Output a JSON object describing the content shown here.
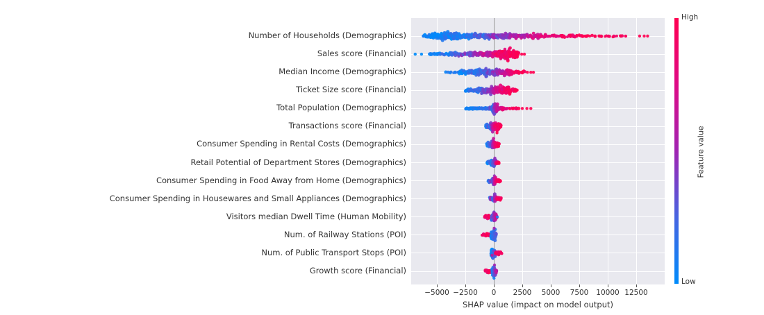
{
  "chart_data": {
    "type": "scatter",
    "variant": "shap_beeswarm_summary",
    "title": "",
    "xlabel": "SHAP value (impact on model output)",
    "ylabel": "",
    "xlim": [
      -7250,
      15000
    ],
    "xticks": [
      -5000,
      -2500,
      0,
      2500,
      5000,
      7500,
      10000,
      12500
    ],
    "xtick_labels": [
      "−5000",
      "−2500",
      "0",
      "2500",
      "5000",
      "7500",
      "10000",
      "12500"
    ],
    "grid": true,
    "plot_bg": "#e9e9ef",
    "grid_color": "#ffffff",
    "zero_line_color": "#9a9a9a",
    "colorbar": {
      "label": "Feature value",
      "high_label": "High",
      "low_label": "Low",
      "high_color": "#ff0051",
      "low_color": "#008bfb",
      "stops": [
        "#ff0051",
        "#de0a85",
        "#a023b2",
        "#4664e1",
        "#008bfb"
      ]
    },
    "features": [
      {
        "name": "Number of Households (Demographics)",
        "shap_range": [
          -6250,
          13500
        ],
        "segments": [
          [
            -6250,
            -5500,
            14,
            3.5,
            0,
            0.12
          ],
          [
            -5500,
            -2850,
            170,
            7.5,
            0,
            0.15
          ],
          [
            -2850,
            -1000,
            75,
            5.5,
            0.05,
            0.32
          ],
          [
            -1000,
            300,
            65,
            5.5,
            0.18,
            0.5
          ],
          [
            300,
            2500,
            75,
            5.5,
            0.35,
            0.65
          ],
          [
            2500,
            4600,
            48,
            4.5,
            0.55,
            0.85
          ],
          [
            4600,
            8200,
            42,
            3,
            0.8,
            1
          ],
          [
            8200,
            11700,
            22,
            1.5,
            0.95,
            1
          ]
        ],
        "singles": [
          [
            12800,
            1,
            0
          ],
          [
            13200,
            1,
            0
          ],
          [
            13500,
            1,
            0
          ]
        ]
      },
      {
        "name": "Sales score (Financial)",
        "shap_range": [
          -6900,
          2680
        ],
        "segments": [
          [
            -5750,
            -4200,
            22,
            2,
            0,
            0.15
          ],
          [
            -4200,
            -2300,
            42,
            3.5,
            0.05,
            0.45
          ],
          [
            -2300,
            -600,
            55,
            4.5,
            0.25,
            0.75
          ],
          [
            -600,
            350,
            45,
            5.5,
            0.55,
            0.9
          ],
          [
            350,
            2150,
            150,
            10.5,
            0.85,
            1
          ]
        ],
        "singles": [
          [
            -6900,
            0,
            0
          ],
          [
            -6350,
            0,
            0
          ],
          [
            2450,
            1,
            0
          ],
          [
            2680,
            1,
            0
          ]
        ]
      },
      {
        "name": "Median Income (Demographics)",
        "shap_range": [
          -4300,
          3475
        ],
        "segments": [
          [
            -4300,
            -3000,
            9,
            1.5,
            0,
            0.12
          ],
          [
            -3000,
            -1750,
            38,
            5,
            0,
            0.22
          ],
          [
            -1750,
            -300,
            68,
            7.5,
            0.08,
            0.38
          ],
          [
            -300,
            700,
            55,
            6.5,
            0.32,
            0.62
          ],
          [
            700,
            1700,
            48,
            6.5,
            0.55,
            0.88
          ],
          [
            1700,
            2700,
            18,
            3.5,
            0.85,
            1
          ]
        ],
        "singles": [
          [
            2950,
            1,
            0
          ],
          [
            3250,
            1,
            0
          ],
          [
            3475,
            1,
            0
          ]
        ]
      },
      {
        "name": "Ticket Size score (Financial)",
        "shap_range": [
          -2500,
          2050
        ],
        "segments": [
          [
            -2500,
            -1600,
            26,
            3.5,
            0,
            0.28
          ],
          [
            -1600,
            -400,
            55,
            6.5,
            0.12,
            0.45
          ],
          [
            -400,
            300,
            48,
            7.5,
            0.38,
            0.7
          ],
          [
            300,
            1500,
            105,
            9.5,
            0.7,
            1
          ],
          [
            1500,
            2050,
            13,
            3,
            0.9,
            1
          ]
        ],
        "singles": []
      },
      {
        "name": "Total Population (Demographics)",
        "shap_range": [
          -2500,
          3250
        ],
        "segments": [
          [
            -2500,
            -800,
            48,
            1.8,
            0,
            0.18
          ],
          [
            -800,
            -150,
            28,
            3,
            0.08,
            0.35
          ],
          [
            -150,
            350,
            115,
            10.5,
            0.12,
            0.72
          ],
          [
            350,
            900,
            26,
            3.5,
            0.55,
            0.92
          ],
          [
            900,
            2200,
            13,
            1.3,
            0.82,
            1
          ]
        ],
        "singles": [
          [
            2500,
            1,
            0
          ],
          [
            2900,
            1,
            0
          ],
          [
            3250,
            1,
            0
          ]
        ]
      },
      {
        "name": "Transactions score (Financial)",
        "shap_range": [
          -730,
          650
        ],
        "segments": [
          [
            -730,
            -350,
            22,
            4.5,
            0,
            0.4
          ],
          [
            -350,
            60,
            48,
            9.5,
            0.15,
            0.8
          ],
          [
            60,
            650,
            40,
            7.5,
            0.8,
            1
          ]
        ],
        "singles": [
          [
            280,
            1,
            9
          ]
        ]
      },
      {
        "name": "Consumer Spending in Rental Costs (Demographics)",
        "shap_range": [
          -640,
          470
        ],
        "segments": [
          [
            -640,
            -250,
            18,
            4.5,
            0,
            0.35
          ],
          [
            -250,
            150,
            50,
            9.5,
            0.25,
            0.8
          ],
          [
            150,
            470,
            22,
            5.5,
            0.85,
            1
          ]
        ],
        "singles": []
      },
      {
        "name": "Retail Potential of Department Stores (Demographics)",
        "shap_range": [
          -600,
          470
        ],
        "segments": [
          [
            -600,
            -250,
            16,
            4.5,
            0,
            0.3
          ],
          [
            -250,
            200,
            50,
            9.5,
            0.05,
            0.55
          ],
          [
            200,
            470,
            13,
            3.5,
            0.8,
            1
          ]
        ],
        "singles": []
      },
      {
        "name": "Consumer Spending in Food Away from Home (Demographics)",
        "shap_range": [
          -500,
          580
        ],
        "segments": [
          [
            -500,
            -150,
            16,
            4.5,
            0.1,
            0.5
          ],
          [
            -150,
            200,
            42,
            8.5,
            0.2,
            0.8
          ],
          [
            200,
            580,
            16,
            3.5,
            0.85,
            1
          ]
        ],
        "singles": []
      },
      {
        "name": "Consumer Spending in Housewares and Small Appliances (Demographics)",
        "shap_range": [
          -380,
          660
        ],
        "segments": [
          [
            -380,
            -100,
            14,
            4.5,
            0.2,
            0.6
          ],
          [
            -100,
            200,
            42,
            8.5,
            0.1,
            0.7
          ],
          [
            200,
            660,
            18,
            3.5,
            0.9,
            1
          ]
        ],
        "singles": []
      },
      {
        "name": "Visitors median Dwell Time (Human Mobility)",
        "shap_range": [
          -800,
          310
        ],
        "segments": [
          [
            -800,
            -220,
            22,
            4,
            0.85,
            1
          ],
          [
            -220,
            260,
            48,
            9.5,
            0.2,
            0.7
          ]
        ],
        "singles": [
          [
            310,
            0.1,
            0
          ]
        ]
      },
      {
        "name": "Num. of Railway Stations (POI)",
        "shap_range": [
          -1050,
          200
        ],
        "segments": [
          [
            -1050,
            -260,
            22,
            3.5,
            0.85,
            1
          ],
          [
            -260,
            200,
            58,
            11.5,
            0,
            0.28
          ]
        ],
        "singles": [
          [
            30,
            0.5,
            -10
          ]
        ]
      },
      {
        "name": "Num. of Public Transport Stops (POI)",
        "shap_range": [
          -250,
          700
        ],
        "segments": [
          [
            -250,
            160,
            52,
            10.5,
            0,
            0.35
          ],
          [
            160,
            700,
            20,
            3.5,
            0.85,
            1
          ]
        ],
        "singles": [
          [
            -160,
            0.6,
            3
          ]
        ]
      },
      {
        "name": "Growth score (Financial)",
        "shap_range": [
          -760,
          260
        ],
        "segments": [
          [
            -760,
            -160,
            20,
            4,
            0.85,
            1
          ],
          [
            -160,
            260,
            48,
            9.5,
            0,
            0.6
          ]
        ],
        "singles": [
          [
            20,
            0.08,
            10
          ],
          [
            60,
            0.5,
            -9
          ]
        ]
      }
    ]
  }
}
